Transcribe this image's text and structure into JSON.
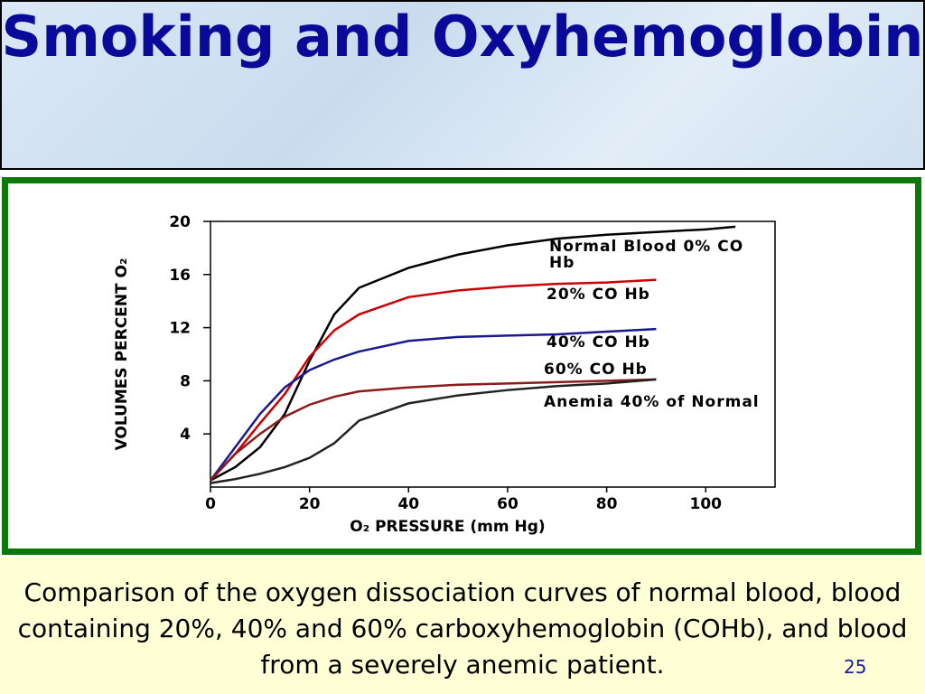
{
  "title": "Smoking and Oxyhemoglobin",
  "caption": "Comparison of the oxygen dissociation curves of normal blood, blood containing 20%, 40% and 60% carboxyhemoglobin (COHb), and blood from a severely anemic patient.",
  "page_number": "25",
  "chart_data": {
    "type": "line",
    "x_label": "O₂ PRESSURE (mm Hg)",
    "y_label": "VOLUMES PERCENT O₂",
    "x": [
      0,
      5,
      10,
      15,
      20,
      25,
      30,
      40,
      50,
      60,
      70,
      80,
      90,
      100,
      106
    ],
    "series": [
      {
        "name": "Normal Blood 0% CO Hb",
        "color": "#000000",
        "values": [
          0.5,
          1.5,
          3,
          5.5,
          9.5,
          13,
          15,
          16.5,
          17.5,
          18.2,
          18.7,
          19,
          19.2,
          19.4,
          19.6
        ]
      },
      {
        "name": "20% CO Hb",
        "color": "#cc0000",
        "values": [
          0.5,
          2.5,
          4.8,
          7,
          9.8,
          11.8,
          13,
          14.3,
          14.8,
          15.1,
          15.3,
          15.4,
          15.6,
          null,
          null
        ]
      },
      {
        "name": "40% CO Hb",
        "color": "#1a1a8c",
        "values": [
          0.5,
          3,
          5.5,
          7.5,
          8.8,
          9.6,
          10.2,
          11,
          11.3,
          11.4,
          11.5,
          11.7,
          11.9,
          null,
          null
        ]
      },
      {
        "name": "60% CO Hb",
        "color": "#8b1a1a",
        "values": [
          0.5,
          2.5,
          4,
          5.3,
          6.2,
          6.8,
          7.2,
          7.5,
          7.7,
          7.8,
          7.9,
          8,
          8.1,
          null,
          null
        ]
      },
      {
        "name": "Anemia 40% of Normal",
        "color": "#222222",
        "values": [
          0.3,
          0.6,
          1,
          1.5,
          2.2,
          3.3,
          5,
          6.3,
          6.9,
          7.3,
          7.6,
          7.8,
          8.1,
          null,
          null
        ]
      }
    ],
    "xlim": [
      0,
      114
    ],
    "xticks": [
      0,
      20,
      40,
      60,
      80,
      100
    ],
    "ylim": [
      0,
      20
    ],
    "yticks": [
      4,
      8,
      12,
      16,
      20
    ]
  }
}
